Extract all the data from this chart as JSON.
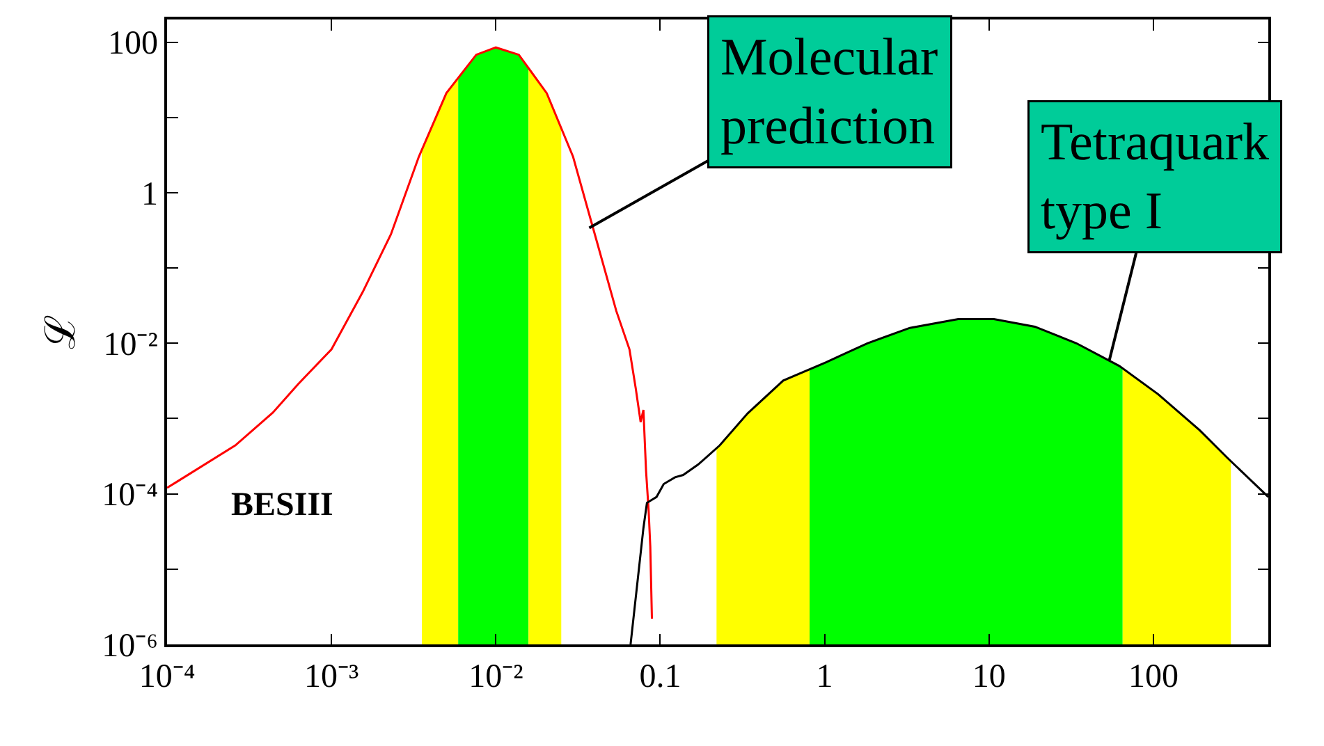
{
  "chart_data": {
    "type": "line",
    "ylabel": "ℒ",
    "log": "xy",
    "marker": "none",
    "line_style": "solid",
    "xlim": [
      0.0001,
      500
    ],
    "ylim": [
      1e-06,
      200
    ],
    "xticks": [
      {
        "value": 0.0001,
        "label": "10⁻⁴"
      },
      {
        "value": 0.001,
        "label": "10⁻³"
      },
      {
        "value": 0.01,
        "label": "10⁻²"
      },
      0.1,
      1,
      10,
      100
    ],
    "yticks": [
      {
        "value": 1e-06,
        "label": "10⁻⁶"
      },
      {
        "value": 1e-05,
        "label": null
      },
      {
        "value": 0.0001,
        "label": "10⁻⁴"
      },
      {
        "value": 0.001,
        "label": null
      },
      {
        "value": 0.01,
        "label": "10⁻²"
      },
      {
        "value": 0.1,
        "label": null
      },
      1,
      {
        "value": 10,
        "label": null
      },
      100
    ],
    "series": [
      {
        "color": "#ff0000",
        "x": [
          0.0001,
          0.00026,
          0.00044,
          0.00063,
          0.001,
          0.00155,
          0.0023,
          0.0034,
          0.005,
          0.0076,
          0.01,
          0.0138,
          0.0204,
          0.0295,
          0.04,
          0.054,
          0.065,
          0.071,
          0.076,
          0.079,
          0.082,
          0.085,
          0.087,
          0.089
        ],
        "values": [
          0.00012,
          0.00044,
          0.0012,
          0.0029,
          0.0083,
          0.048,
          0.28,
          3.0,
          21,
          68,
          85,
          68,
          21,
          3.0,
          0.28,
          0.027,
          0.0083,
          0.0025,
          0.0009,
          0.0013,
          0.0002,
          6e-05,
          2e-05,
          2.2e-06
        ]
      },
      {
        "color": "#000000",
        "x": [
          0.066,
          0.079,
          0.083,
          0.095,
          0.105,
          0.123,
          0.138,
          0.17,
          0.23,
          0.34,
          0.56,
          1.02,
          1.82,
          3.3,
          6.5,
          10.7,
          19,
          34,
          62,
          107,
          191,
          282,
          500
        ],
        "values": [
          1e-06,
          3.5e-05,
          7.6e-05,
          9.1e-05,
          0.000135,
          0.000166,
          0.000178,
          0.000245,
          0.00044,
          0.00117,
          0.0032,
          0.0056,
          0.01,
          0.016,
          0.021,
          0.021,
          0.0166,
          0.01,
          0.005,
          0.0021,
          0.0007,
          0.0003,
          9.1e-05
        ]
      }
    ],
    "bands": [
      {
        "axis": "x",
        "from": 0.00355,
        "to": 0.0059,
        "color": "#ffff00"
      },
      {
        "axis": "x",
        "from": 0.0059,
        "to": 0.0158,
        "color": "#00ff00"
      },
      {
        "axis": "x",
        "from": 0.0158,
        "to": 0.025,
        "color": "#ffff00"
      },
      {
        "axis": "x",
        "from": 0.22,
        "to": 0.81,
        "color": "#ffff00"
      },
      {
        "axis": "x",
        "from": 0.81,
        "to": 65,
        "color": "#00ff00"
      },
      {
        "axis": "x",
        "from": 65,
        "to": 296,
        "color": "#ffff00"
      }
    ],
    "annotations": [
      {
        "text": "Molecular\nprediction",
        "x": 0.037,
        "y": 0.34
      },
      {
        "text": "Tetraquark\ntype I",
        "x": 54,
        "y": 0.006
      },
      "BESIII"
    ]
  }
}
